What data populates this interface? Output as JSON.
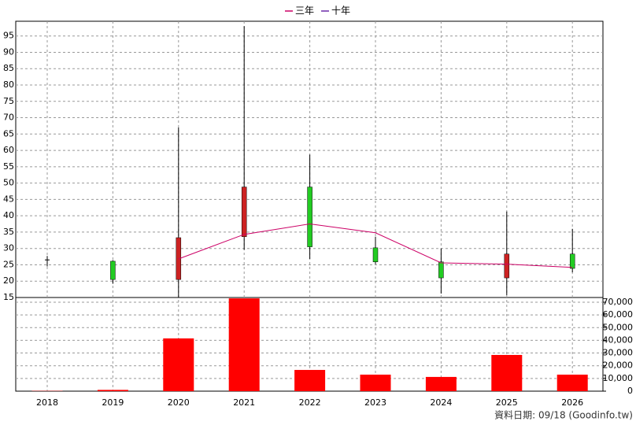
{
  "chart_data": {
    "type": "candlestick",
    "categories": [
      "2018",
      "2019",
      "2020",
      "2021",
      "2022",
      "2023",
      "2024",
      "2025",
      "2026"
    ],
    "open": [
      26.5,
      26.1,
      20.5,
      33.6,
      48.8,
      30.2,
      25.9,
      21.0,
      28.3
    ],
    "high": [
      27.7,
      26.4,
      67.0,
      98.0,
      58.7,
      33.6,
      30.0,
      41.3,
      36.0
    ],
    "low": [
      24.5,
      19.2,
      14.9,
      29.6,
      26.8,
      25.2,
      16.2,
      15.7,
      22.7
    ],
    "close": [
      26.5,
      20.5,
      33.3,
      48.8,
      30.5,
      25.9,
      21.0,
      28.3,
      23.9
    ],
    "up_color": "#cc2222",
    "down_color": "#22cc22",
    "flat_color": "#000000",
    "series": [
      {
        "name": "三年",
        "color": "#cc0066",
        "values": [
          null,
          null,
          26.8,
          34.3,
          37.5,
          34.8,
          25.6,
          25.2,
          24.2
        ]
      },
      {
        "name": "十年",
        "color": "#6a2aa8",
        "values": [
          null,
          null,
          null,
          null,
          null,
          null,
          null,
          null,
          null
        ]
      }
    ],
    "ylim": [
      15,
      99.5
    ],
    "yticks": [
      15,
      20,
      25,
      30,
      35,
      40,
      45,
      50,
      55,
      60,
      65,
      70,
      75,
      80,
      85,
      90,
      95
    ],
    "grid": true,
    "legend": "top",
    "volume": {
      "color": "#ff0000",
      "values": [
        200,
        1000,
        41500,
        73000,
        16700,
        13000,
        11200,
        28500,
        13000
      ],
      "ylim": [
        0,
        73700
      ],
      "yticks": [
        0,
        {
          "value": 10000,
          "label": "10,000"
        },
        {
          "value": 20000,
          "label": "20,000"
        },
        {
          "value": 30000,
          "label": "30,000"
        },
        {
          "value": 40000,
          "label": "40,000"
        },
        {
          "value": 50000,
          "label": "50,000"
        },
        {
          "value": 60000,
          "label": "60,000"
        },
        {
          "value": 70000,
          "label": "70,000"
        }
      ]
    },
    "note": "資料日期: 09/18 (Goodinfo.tw)"
  }
}
